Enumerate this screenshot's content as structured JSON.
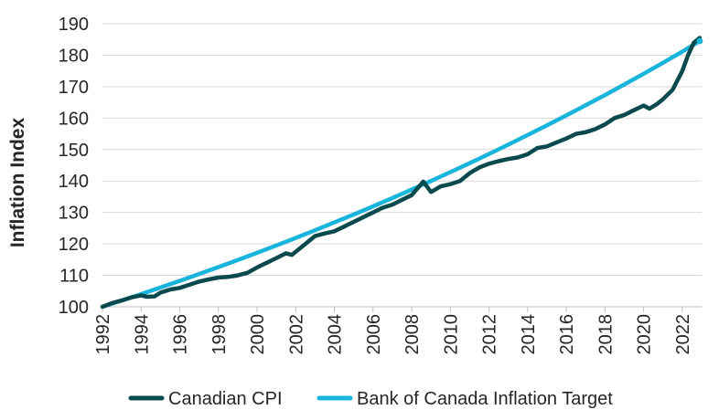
{
  "chart_data": {
    "type": "line",
    "title": "",
    "xlabel": "",
    "ylabel": "Inflation Index",
    "xlim": [
      1992,
      2023
    ],
    "ylim": [
      100,
      190
    ],
    "x_ticks": [
      1992,
      1994,
      1996,
      1998,
      2000,
      2002,
      2004,
      2006,
      2008,
      2010,
      2012,
      2014,
      2016,
      2018,
      2020,
      2022
    ],
    "y_ticks": [
      100,
      110,
      120,
      130,
      140,
      150,
      160,
      170,
      180,
      190
    ],
    "grid": "horizontal",
    "legend_position": "bottom",
    "series": [
      {
        "name": "Canadian CPI",
        "color": "#0b4a4c",
        "points": [
          [
            1992.0,
            100.0
          ],
          [
            1992.5,
            101.2
          ],
          [
            1993.0,
            102.0
          ],
          [
            1993.5,
            103.0
          ],
          [
            1994.0,
            103.6
          ],
          [
            1994.3,
            103.2
          ],
          [
            1994.7,
            103.3
          ],
          [
            1995.0,
            104.5
          ],
          [
            1995.5,
            105.5
          ],
          [
            1996.0,
            106.0
          ],
          [
            1996.5,
            107.0
          ],
          [
            1997.0,
            108.0
          ],
          [
            1997.5,
            108.7
          ],
          [
            1998.0,
            109.3
          ],
          [
            1998.5,
            109.5
          ],
          [
            1999.0,
            110.0
          ],
          [
            1999.5,
            110.8
          ],
          [
            2000.0,
            112.5
          ],
          [
            2000.5,
            114.0
          ],
          [
            2001.0,
            115.5
          ],
          [
            2001.5,
            117.0
          ],
          [
            2001.8,
            116.5
          ],
          [
            2002.0,
            117.5
          ],
          [
            2002.5,
            120.0
          ],
          [
            2003.0,
            122.5
          ],
          [
            2003.5,
            123.3
          ],
          [
            2004.0,
            124.0
          ],
          [
            2004.5,
            125.5
          ],
          [
            2005.0,
            127.0
          ],
          [
            2005.5,
            128.5
          ],
          [
            2006.0,
            130.0
          ],
          [
            2006.5,
            131.5
          ],
          [
            2007.0,
            132.5
          ],
          [
            2007.5,
            134.0
          ],
          [
            2008.0,
            135.5
          ],
          [
            2008.6,
            139.8
          ],
          [
            2009.0,
            136.5
          ],
          [
            2009.5,
            138.3
          ],
          [
            2010.0,
            139.0
          ],
          [
            2010.5,
            140.0
          ],
          [
            2011.0,
            142.5
          ],
          [
            2011.5,
            144.3
          ],
          [
            2012.0,
            145.5
          ],
          [
            2012.5,
            146.3
          ],
          [
            2013.0,
            147.0
          ],
          [
            2013.5,
            147.5
          ],
          [
            2014.0,
            148.5
          ],
          [
            2014.5,
            150.5
          ],
          [
            2015.0,
            151.0
          ],
          [
            2015.5,
            152.3
          ],
          [
            2016.0,
            153.5
          ],
          [
            2016.5,
            155.0
          ],
          [
            2017.0,
            155.5
          ],
          [
            2017.5,
            156.5
          ],
          [
            2018.0,
            158.0
          ],
          [
            2018.5,
            160.0
          ],
          [
            2019.0,
            161.0
          ],
          [
            2019.5,
            162.5
          ],
          [
            2020.0,
            164.0
          ],
          [
            2020.3,
            163.0
          ],
          [
            2020.7,
            164.5
          ],
          [
            2021.0,
            166.0
          ],
          [
            2021.5,
            169.0
          ],
          [
            2022.0,
            175.0
          ],
          [
            2022.3,
            180.0
          ],
          [
            2022.6,
            184.0
          ],
          [
            2022.9,
            185.5
          ]
        ]
      },
      {
        "name": "Bank of Canada Inflation Target",
        "color": "#18b4dc",
        "points": [
          [
            1992,
            100.0
          ],
          [
            1993,
            102.0
          ],
          [
            1994,
            104.04
          ],
          [
            1995,
            106.12
          ],
          [
            1996,
            108.24
          ],
          [
            1997,
            110.41
          ],
          [
            1998,
            112.62
          ],
          [
            1999,
            114.87
          ],
          [
            2000,
            117.17
          ],
          [
            2001,
            119.51
          ],
          [
            2002,
            121.9
          ],
          [
            2003,
            124.34
          ],
          [
            2004,
            126.82
          ],
          [
            2005,
            129.36
          ],
          [
            2006,
            131.95
          ],
          [
            2007,
            134.59
          ],
          [
            2008,
            137.28
          ],
          [
            2009,
            140.02
          ],
          [
            2010,
            142.82
          ],
          [
            2011,
            145.68
          ],
          [
            2012,
            148.59
          ],
          [
            2013,
            151.57
          ],
          [
            2014,
            154.6
          ],
          [
            2015,
            157.69
          ],
          [
            2016,
            160.84
          ],
          [
            2017,
            164.06
          ],
          [
            2018,
            167.34
          ],
          [
            2019,
            170.69
          ],
          [
            2020,
            174.1
          ],
          [
            2021,
            177.58
          ],
          [
            2022,
            181.14
          ],
          [
            2022.9,
            184.5
          ]
        ]
      }
    ]
  }
}
